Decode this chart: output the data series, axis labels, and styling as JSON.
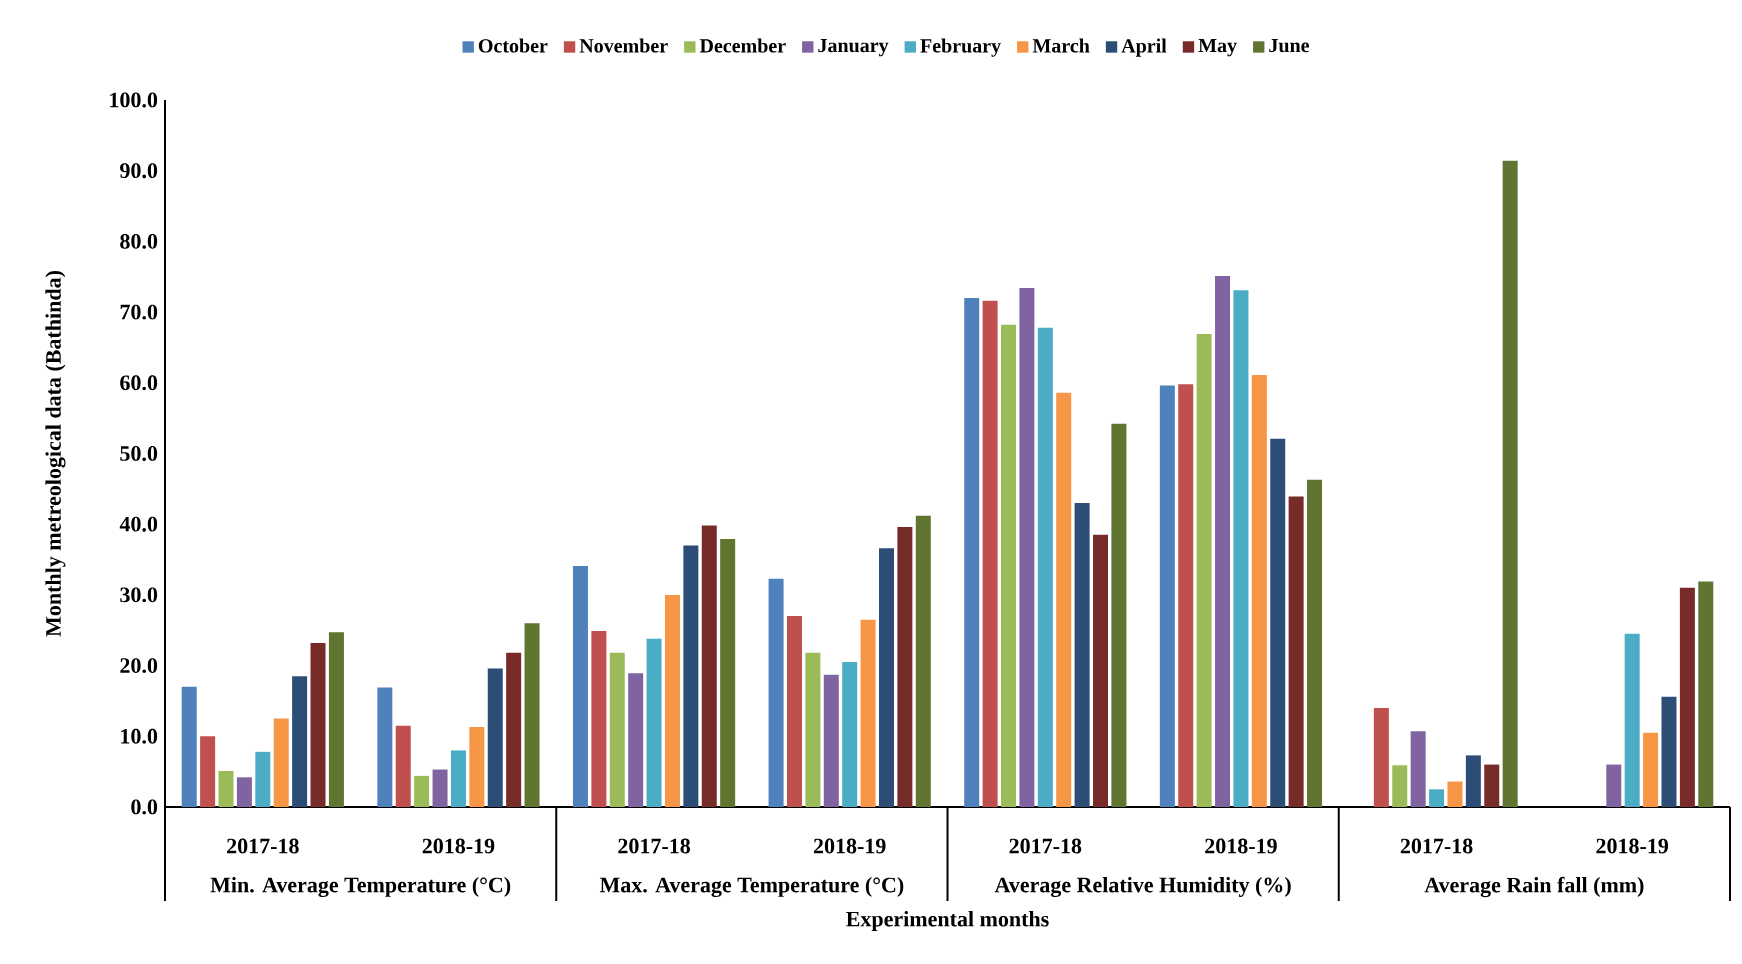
{
  "chart_data": {
    "type": "bar",
    "xlabel": "Experimental months",
    "ylabel": "Monthly metreological data (Bathinda)",
    "categories": [
      "2017-18",
      "2018-19",
      "2017-18",
      "2018-19",
      "2017-18",
      "2018-19",
      "2017-18",
      "2018-19"
    ],
    "annotations": [
      "Min. Average Temperature (°C)",
      "Max. Average Temperature (°C)",
      "Average Relative Humidity (%)",
      "Average Rain fall (mm)"
    ],
    "series": [
      {
        "name": "October",
        "color": "#4f81bd",
        "values": [
          17.0,
          16.9,
          34.1,
          32.3,
          72.0,
          59.6,
          0,
          0
        ]
      },
      {
        "name": "November",
        "color": "#c0504d",
        "values": [
          10.0,
          11.5,
          24.9,
          27.0,
          71.6,
          59.8,
          14.0,
          0
        ]
      },
      {
        "name": "December",
        "color": "#9bbb59",
        "values": [
          5.1,
          4.4,
          21.8,
          21.8,
          68.2,
          66.9,
          5.9,
          0
        ]
      },
      {
        "name": "January",
        "color": "#8064a2",
        "values": [
          4.2,
          5.3,
          18.9,
          18.7,
          73.4,
          75.1,
          10.7,
          6.0
        ]
      },
      {
        "name": "February",
        "color": "#4bacc6",
        "values": [
          7.8,
          8.0,
          23.8,
          20.5,
          67.8,
          73.1,
          2.5,
          24.5
        ]
      },
      {
        "name": "March",
        "color": "#f79646",
        "values": [
          12.5,
          11.3,
          30.0,
          26.5,
          58.6,
          61.1,
          3.6,
          10.5
        ]
      },
      {
        "name": "April",
        "color": "#2c4d75",
        "values": [
          18.5,
          19.6,
          37.0,
          36.6,
          43.0,
          52.1,
          7.3,
          15.6
        ]
      },
      {
        "name": "May",
        "color": "#772c2a",
        "values": [
          23.2,
          21.8,
          39.8,
          39.6,
          38.5,
          43.9,
          6.0,
          31.0
        ]
      },
      {
        "name": "June",
        "color": "#5f7530",
        "values": [
          24.7,
          26.0,
          37.9,
          41.2,
          54.2,
          46.3,
          91.4,
          31.9
        ]
      }
    ],
    "ylim": [
      0,
      100
    ],
    "yticks": [
      {
        "value": 0,
        "label": "0.0"
      },
      {
        "value": 10,
        "label": "10.0"
      },
      {
        "value": 20,
        "label": "20.0"
      },
      {
        "value": 30,
        "label": "30.0"
      },
      {
        "value": 40,
        "label": "40.0"
      },
      {
        "value": 50,
        "label": "50.0"
      },
      {
        "value": 60,
        "label": "60.0"
      },
      {
        "value": 70,
        "label": "70.0"
      },
      {
        "value": 80,
        "label": "80.0"
      },
      {
        "value": 90,
        "label": "90.0"
      },
      {
        "value": 100,
        "label": "100.0"
      }
    ],
    "legend": "top",
    "grid": false
  }
}
